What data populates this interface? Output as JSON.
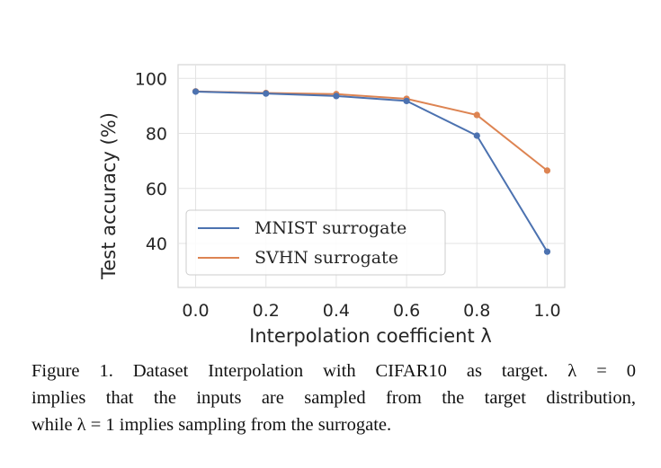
{
  "chart_data": {
    "type": "line",
    "title": "",
    "xlabel": "Interpolation coefficient λ",
    "ylabel": "Test accuracy (%)",
    "x": [
      0.0,
      0.2,
      0.4,
      0.6,
      0.8,
      1.0
    ],
    "x_tick_labels": [
      "0.0",
      "0.2",
      "0.4",
      "0.6",
      "0.8",
      "1.0"
    ],
    "y_ticks": [
      40,
      60,
      80,
      100
    ],
    "y_tick_labels": [
      "40",
      "60",
      "80",
      "100"
    ],
    "xlim": [
      -0.05,
      1.05
    ],
    "ylim": [
      24,
      105
    ],
    "grid": true,
    "legend_position": "lower-left",
    "series": [
      {
        "name": "MNIST surrogate",
        "color": "#4c72b0",
        "values": [
          95.2,
          94.5,
          93.6,
          91.8,
          79.2,
          37.0
        ]
      },
      {
        "name": "SVHN surrogate",
        "color": "#dd8452",
        "values": [
          95.3,
          94.7,
          94.3,
          92.6,
          86.7,
          66.5
        ]
      }
    ]
  },
  "caption": {
    "line1": "Figure 1. Dataset Interpolation with CIFAR10 as target.  λ = 0",
    "line2": "implies that the inputs are sampled from the target distribution,",
    "line3": "while λ = 1 implies sampling from the surrogate."
  }
}
